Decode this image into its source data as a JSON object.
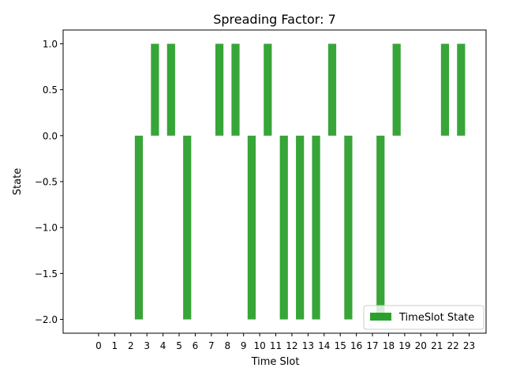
{
  "chart_data": {
    "type": "bar",
    "title": "Spreading Factor: 7",
    "xlabel": "Time Slot",
    "ylabel": "State",
    "ylim": [
      -2.15,
      1.15
    ],
    "xlim": [
      -2.2,
      24.05
    ],
    "yticks": [
      -2.0,
      -1.5,
      -1.0,
      -0.5,
      0.0,
      0.5,
      1.0
    ],
    "ytick_labels": [
      "−2.0",
      "−1.5",
      "−1.0",
      "−0.5",
      "0.0",
      "0.5",
      "1.0"
    ],
    "xticks": [
      0,
      1,
      2,
      3,
      4,
      5,
      6,
      7,
      8,
      9,
      10,
      11,
      12,
      13,
      14,
      15,
      16,
      17,
      18,
      19,
      20,
      21,
      22,
      23
    ],
    "xtick_labels": [
      "0",
      "1",
      "2",
      "3",
      "4",
      "5",
      "6",
      "7",
      "8",
      "9",
      "10",
      "11",
      "12",
      "13",
      "14",
      "15",
      "16",
      "17",
      "18",
      "19",
      "20",
      "21",
      "22",
      "23"
    ],
    "bar_width": 0.5,
    "bar_offset": 0.5,
    "series": [
      {
        "name": "TimeSlot State",
        "color": "#2ca02c",
        "values": [
          0,
          0,
          -2,
          1,
          1,
          -2,
          0,
          1,
          1,
          -2,
          1,
          -2,
          -2,
          -2,
          1,
          -2,
          0,
          -2,
          1,
          0,
          0,
          1,
          1,
          0
        ]
      }
    ],
    "legend": {
      "position": "lower-right",
      "entries": [
        "TimeSlot State"
      ]
    },
    "grid": false
  }
}
